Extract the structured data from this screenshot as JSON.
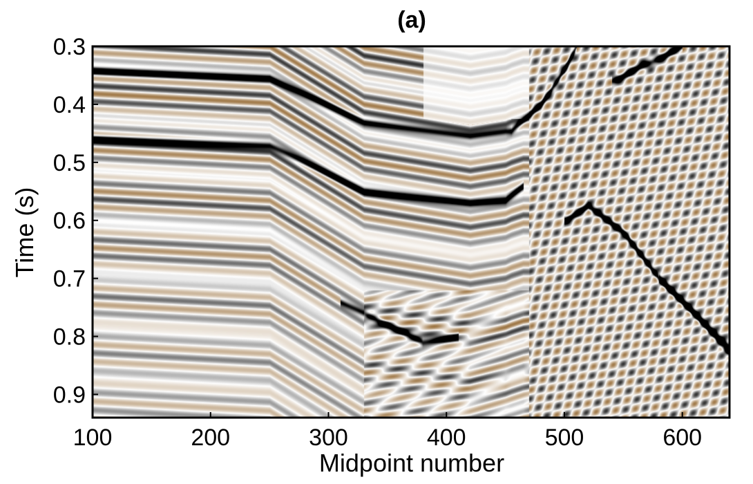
{
  "chart_data": {
    "type": "heatmap",
    "title": "(a)",
    "xlabel": "Midpoint number",
    "ylabel": "Time (s)",
    "xlim": [
      100,
      640
    ],
    "ylim": [
      0.3,
      0.94
    ],
    "y_reversed": true,
    "xticks": [
      100,
      200,
      300,
      400,
      500,
      600
    ],
    "yticks": [
      0.3,
      0.4,
      0.5,
      0.6,
      0.7,
      0.8,
      0.9
    ],
    "colormap": {
      "negative": "#8a5a1e",
      "zero": "#ffffff",
      "positive": "#000000"
    },
    "reflectors": [
      {
        "polarity": "positive",
        "strength": 1.0,
        "points": [
          [
            100,
            0.342
          ],
          [
            250,
            0.355
          ],
          [
            330,
            0.43
          ],
          [
            420,
            0.455
          ],
          [
            455,
            0.445
          ],
          [
            480,
            0.4
          ],
          [
            500,
            0.34
          ],
          [
            510,
            0.3
          ]
        ]
      },
      {
        "polarity": "positive",
        "strength": 1.0,
        "points": [
          [
            100,
            0.458
          ],
          [
            250,
            0.47
          ],
          [
            330,
            0.55
          ],
          [
            420,
            0.57
          ],
          [
            450,
            0.565
          ],
          [
            465,
            0.54
          ]
        ]
      },
      {
        "polarity": "positive",
        "strength": 0.95,
        "points": [
          [
            310,
            0.74
          ],
          [
            340,
            0.77
          ],
          [
            380,
            0.81
          ],
          [
            410,
            0.8
          ]
        ]
      },
      {
        "polarity": "positive",
        "strength": 1.0,
        "points": [
          [
            500,
            0.6
          ],
          [
            520,
            0.575
          ],
          [
            550,
            0.62
          ],
          [
            580,
            0.7
          ],
          [
            640,
            0.82
          ]
        ]
      },
      {
        "polarity": "positive",
        "strength": 1.0,
        "points": [
          [
            540,
            0.36
          ],
          [
            580,
            0.32
          ],
          [
            600,
            0.3
          ]
        ]
      },
      {
        "polarity": "positive",
        "strength": 0.9,
        "points": [
          [
            580,
            0.7
          ],
          [
            610,
            0.76
          ],
          [
            640,
            0.83
          ]
        ]
      }
    ]
  }
}
